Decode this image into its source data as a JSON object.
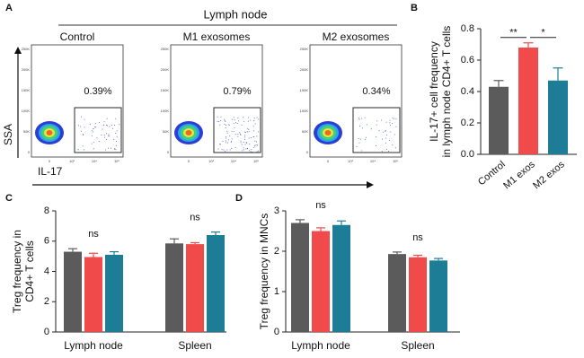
{
  "panel_a": {
    "panel": "A",
    "title": "Lymph node",
    "plots": [
      {
        "label": "Control",
        "gate": "0.39%"
      },
      {
        "label": "M1 exosomes",
        "gate": "0.79%"
      },
      {
        "label": "M2 exosomes",
        "gate": "0.34%"
      }
    ],
    "y_axis": "SSA",
    "x_axis": "IL-17",
    "flow_yticks": [
      "250K",
      "200K",
      "150K",
      "100K",
      "50K",
      "0"
    ],
    "flow_xticks": [
      "0",
      "10³",
      "10⁴",
      "10⁵"
    ]
  },
  "chart_data": [
    {
      "type": "bar",
      "panel": "B",
      "y_label": [
        "IL-17+ cell frequency",
        "in lymph node CD4+ T cells"
      ],
      "categories": [
        "Control",
        "M1 exos",
        "M2 exos"
      ],
      "values": [
        0.43,
        0.68,
        0.47
      ],
      "errors": [
        0.04,
        0.03,
        0.08
      ],
      "colors": [
        "#5b5b5b",
        "#f04a4a",
        "#1e7d96"
      ],
      "annotations": [
        "**",
        "*"
      ],
      "ylim": [
        0,
        0.8
      ],
      "yticks": [
        {
          "value": 0,
          "label": "0.0"
        },
        0.2,
        0.4,
        0.6,
        0.8
      ]
    },
    {
      "type": "grouped-bar",
      "panel": "C",
      "y_label": [
        "Treg frequency in",
        "CD4+ T cells"
      ],
      "categories": [
        "Lymph node",
        "Spleen"
      ],
      "annotations": [
        "ns",
        "ns"
      ],
      "series": [
        {
          "color": "#5b5b5b",
          "values": [
            5.3,
            5.85
          ],
          "errors": [
            0.2,
            0.3
          ]
        },
        {
          "color": "#f04a4a",
          "values": [
            4.95,
            5.8
          ],
          "errors": [
            0.25,
            0.1
          ]
        },
        {
          "color": "#1e7d96",
          "values": [
            5.1,
            6.4
          ],
          "errors": [
            0.2,
            0.2
          ]
        }
      ],
      "ylim": [
        0,
        8
      ],
      "yticks": [
        0,
        2,
        4,
        6,
        8
      ]
    },
    {
      "type": "grouped-bar",
      "panel": "D",
      "y_label": [
        "Treg frequency in MNCs"
      ],
      "categories": [
        "Lymph node",
        "Spleen"
      ],
      "annotations": [
        "ns",
        "ns"
      ],
      "series": [
        {
          "color": "#5b5b5b",
          "values": [
            2.7,
            1.93
          ],
          "errors": [
            0.08,
            0.05
          ]
        },
        {
          "color": "#f04a4a",
          "values": [
            2.5,
            1.85
          ],
          "errors": [
            0.08,
            0.05
          ]
        },
        {
          "color": "#1e7d96",
          "values": [
            2.65,
            1.77
          ],
          "errors": [
            0.1,
            0.05
          ]
        }
      ],
      "ylim": [
        0,
        3
      ],
      "yticks": [
        0,
        1,
        2,
        3
      ]
    }
  ]
}
